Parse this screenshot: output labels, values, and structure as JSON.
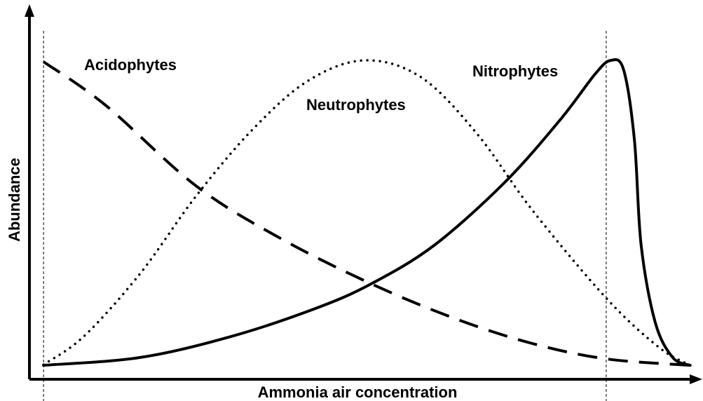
{
  "chart_data": {
    "type": "line",
    "x_label": "Ammonia air concentration",
    "y_label": "Abundance",
    "xlim": [
      0,
      100
    ],
    "ylim": [
      0,
      100
    ],
    "reference_lines_x": [
      2.1,
      85.9
    ],
    "series": [
      {
        "name": "Acidophytes",
        "color": "#000000",
        "dash": "dashed",
        "x": [
          2.1,
          11.3,
          24.8,
          37.4,
          50.9,
          63.5,
          74.9,
          85.9,
          98.4
        ],
        "values": [
          88.8,
          76.7,
          54.1,
          39.4,
          26.7,
          16.9,
          10.0,
          5.7,
          3.9
        ]
      },
      {
        "name": "Neutrophytes",
        "color": "#000000",
        "dash": "dotted",
        "x": [
          2.1,
          8.1,
          16.5,
          24.8,
          33.2,
          41.5,
          49.9,
          58.3,
          66.6,
          74.9,
          85.9,
          93.7,
          98.4
        ],
        "values": [
          4.1,
          12.0,
          29.6,
          51.2,
          69.8,
          83.5,
          89.2,
          84.5,
          68.8,
          47.3,
          22.7,
          9.0,
          3.9
        ]
      },
      {
        "name": "Nitrophytes",
        "color": "#000000",
        "dash": "solid",
        "x": [
          2.1,
          16.5,
          30.1,
          42.6,
          50.9,
          60.3,
          70.8,
          79.1,
          84.3,
          86.6,
          88.5,
          90.1,
          91.1,
          93.2,
          95.8,
          98.4
        ],
        "values": [
          3.9,
          6.1,
          12.0,
          19.8,
          26.7,
          37.5,
          55.1,
          72.7,
          85.5,
          89.2,
          86.5,
          66.9,
          37.5,
          15.9,
          6.1,
          3.9
        ]
      }
    ]
  }
}
